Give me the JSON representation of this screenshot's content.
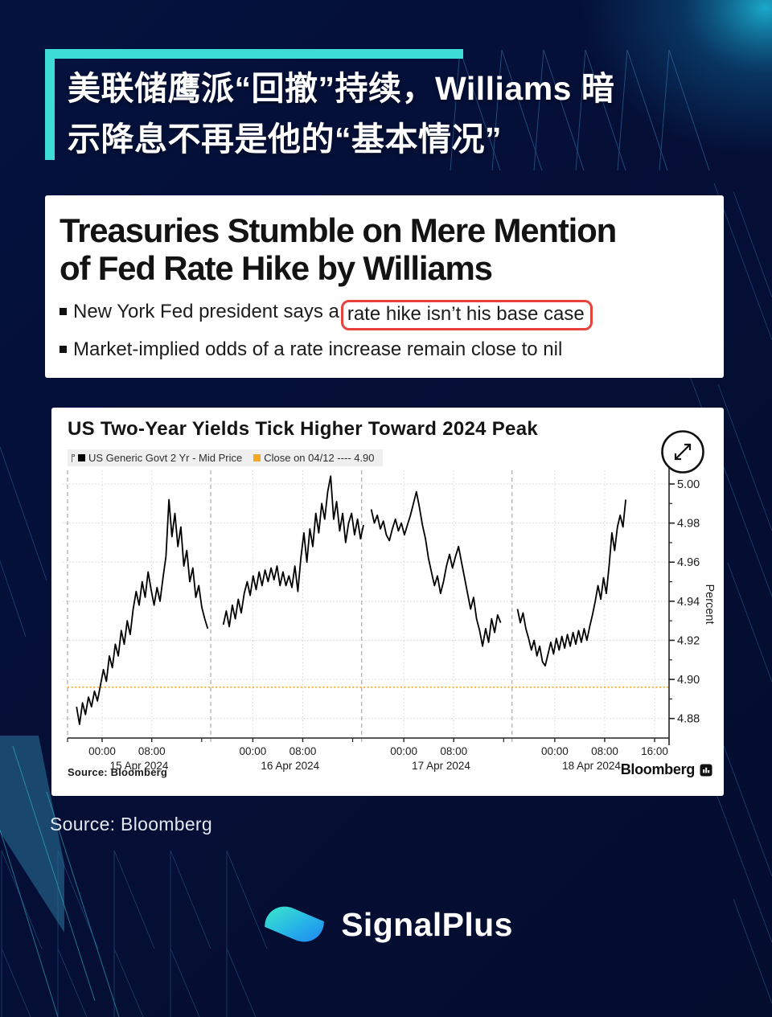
{
  "page": {
    "background": "#050e34",
    "accent": "#3edcd6"
  },
  "headline": {
    "line1": "美联储鹰派“回撤”持续，Williams 暗",
    "line2": "示降息不再是他的“基本情况”"
  },
  "news_card": {
    "title_line1": "Treasuries Stumble on Mere Mention",
    "title_line2": "of Fed Rate Hike by Williams",
    "highlight_color": "#e8423d",
    "bullets": [
      {
        "prefix": "New York Fed president says a ",
        "highlight": "rate hike isn’t his base case"
      },
      {
        "prefix": "Market-implied odds of a rate increase remain close to nil",
        "highlight": ""
      }
    ]
  },
  "chart_card": {
    "title": "US Two-Year Yields Tick Higher Toward 2024 Peak",
    "legend": [
      {
        "swatch": "#000000",
        "label": "US Generic Govt 2 Yr - Mid Price"
      },
      {
        "swatch": "#f5a623",
        "label": "Close on 04/12 ---- 4.90"
      }
    ],
    "source": "Source: Bloomberg",
    "brand": "Bloomberg",
    "axis_unit": "Percent"
  },
  "chart_data": {
    "type": "line",
    "title": "US Two-Year Yields Tick Higher Toward 2024 Peak",
    "xlabel": "",
    "ylabel": "Percent",
    "ylim": [
      4.87,
      5.007
    ],
    "grid": true,
    "legend_position": "top-left",
    "yticks": [
      4.88,
      4.9,
      4.92,
      4.94,
      4.96,
      4.98,
      5.0
    ],
    "yticks_minor": [
      4.89,
      4.91,
      4.93,
      4.95,
      4.97,
      4.99
    ],
    "xticks": [
      {
        "fx": 0.0575,
        "label": "00:00"
      },
      {
        "fx": 0.14,
        "label": "08:00"
      },
      {
        "fx": 0.308,
        "label": "00:00"
      },
      {
        "fx": 0.391,
        "label": "08:00"
      },
      {
        "fx": 0.559,
        "label": "00:00"
      },
      {
        "fx": 0.642,
        "label": "08:00"
      },
      {
        "fx": 0.81,
        "label": "00:00"
      },
      {
        "fx": 0.893,
        "label": "08:00"
      },
      {
        "fx": 0.976,
        "label": "16:00"
      }
    ],
    "xticks_minor": [
      0,
      0.223,
      0.474,
      0.725
    ],
    "day_labels": [
      {
        "fx": 0.119,
        "label": "15 Apr 2024"
      },
      {
        "fx": 0.37,
        "label": "16 Apr 2024"
      },
      {
        "fx": 0.621,
        "label": "17 Apr 2024"
      },
      {
        "fx": 0.871,
        "label": "18 Apr 2024"
      }
    ],
    "separators": [
      0.238,
      0.489,
      0.739
    ],
    "close_line": {
      "label": "Close on 04/12",
      "display": "4.90",
      "value": 4.896,
      "color": "#f5a623"
    },
    "series": [
      {
        "name": "US Generic Govt 2 Yr - Mid Price",
        "color": "#000000",
        "segments": [
          {
            "x0": 0.015,
            "x1": 0.233,
            "values": [
              4.886,
              4.877,
              4.888,
              4.882,
              4.891,
              4.886,
              4.894,
              4.889,
              4.897,
              4.905,
              4.899,
              4.912,
              4.906,
              4.918,
              4.912,
              4.925,
              4.918,
              4.93,
              4.923,
              4.936,
              4.945,
              4.938,
              4.95,
              4.942,
              4.955,
              4.946,
              4.938,
              4.947,
              4.94,
              4.952,
              4.963,
              4.992,
              4.973,
              4.985,
              4.968,
              4.978,
              4.958,
              4.966,
              4.95,
              4.957,
              4.942,
              4.948,
              4.937,
              4.931,
              4.926
            ]
          },
          {
            "x0": 0.259,
            "x1": 0.492,
            "values": [
              4.928,
              4.935,
              4.927,
              4.938,
              4.931,
              4.941,
              4.934,
              4.944,
              4.95,
              4.943,
              4.953,
              4.946,
              4.955,
              4.948,
              4.956,
              4.95,
              4.957,
              4.951,
              4.958,
              4.948,
              4.955,
              4.948,
              4.953,
              4.947,
              4.958,
              4.945,
              4.962,
              4.975,
              4.96,
              4.977,
              4.968,
              4.985,
              4.975,
              4.99,
              4.982,
              4.996,
              5.004,
              4.982,
              4.991,
              4.976,
              4.985,
              4.97,
              4.98,
              4.985,
              4.974,
              4.982,
              4.972,
              4.979
            ]
          },
          {
            "x0": 0.505,
            "x1": 0.72,
            "values": [
              4.987,
              4.98,
              4.984,
              4.977,
              4.981,
              4.974,
              4.971,
              4.977,
              4.982,
              4.976,
              4.98,
              4.974,
              4.979,
              4.984,
              4.99,
              4.996,
              4.988,
              4.979,
              4.972,
              4.962,
              4.955,
              4.948,
              4.953,
              4.944,
              4.95,
              4.958,
              4.964,
              4.957,
              4.963,
              4.968,
              4.96,
              4.952,
              4.944,
              4.936,
              4.942,
              4.931,
              4.925,
              4.917,
              4.926,
              4.919,
              4.931,
              4.924,
              4.933,
              4.929
            ]
          },
          {
            "x0": 0.748,
            "x1": 0.928,
            "values": [
              4.936,
              4.929,
              4.934,
              4.926,
              4.921,
              4.915,
              4.92,
              4.912,
              4.917,
              4.909,
              4.907,
              4.913,
              4.919,
              4.913,
              4.921,
              4.915,
              4.922,
              4.916,
              4.923,
              4.917,
              4.924,
              4.918,
              4.925,
              4.919,
              4.926,
              4.92,
              4.927,
              4.933,
              4.94,
              4.948,
              4.941,
              4.952,
              4.944,
              4.958,
              4.975,
              4.966,
              4.978,
              4.984,
              4.978,
              4.992
            ]
          }
        ]
      }
    ]
  },
  "footer": {
    "source": "Source: Bloomberg",
    "brand": "SignalPlus"
  }
}
